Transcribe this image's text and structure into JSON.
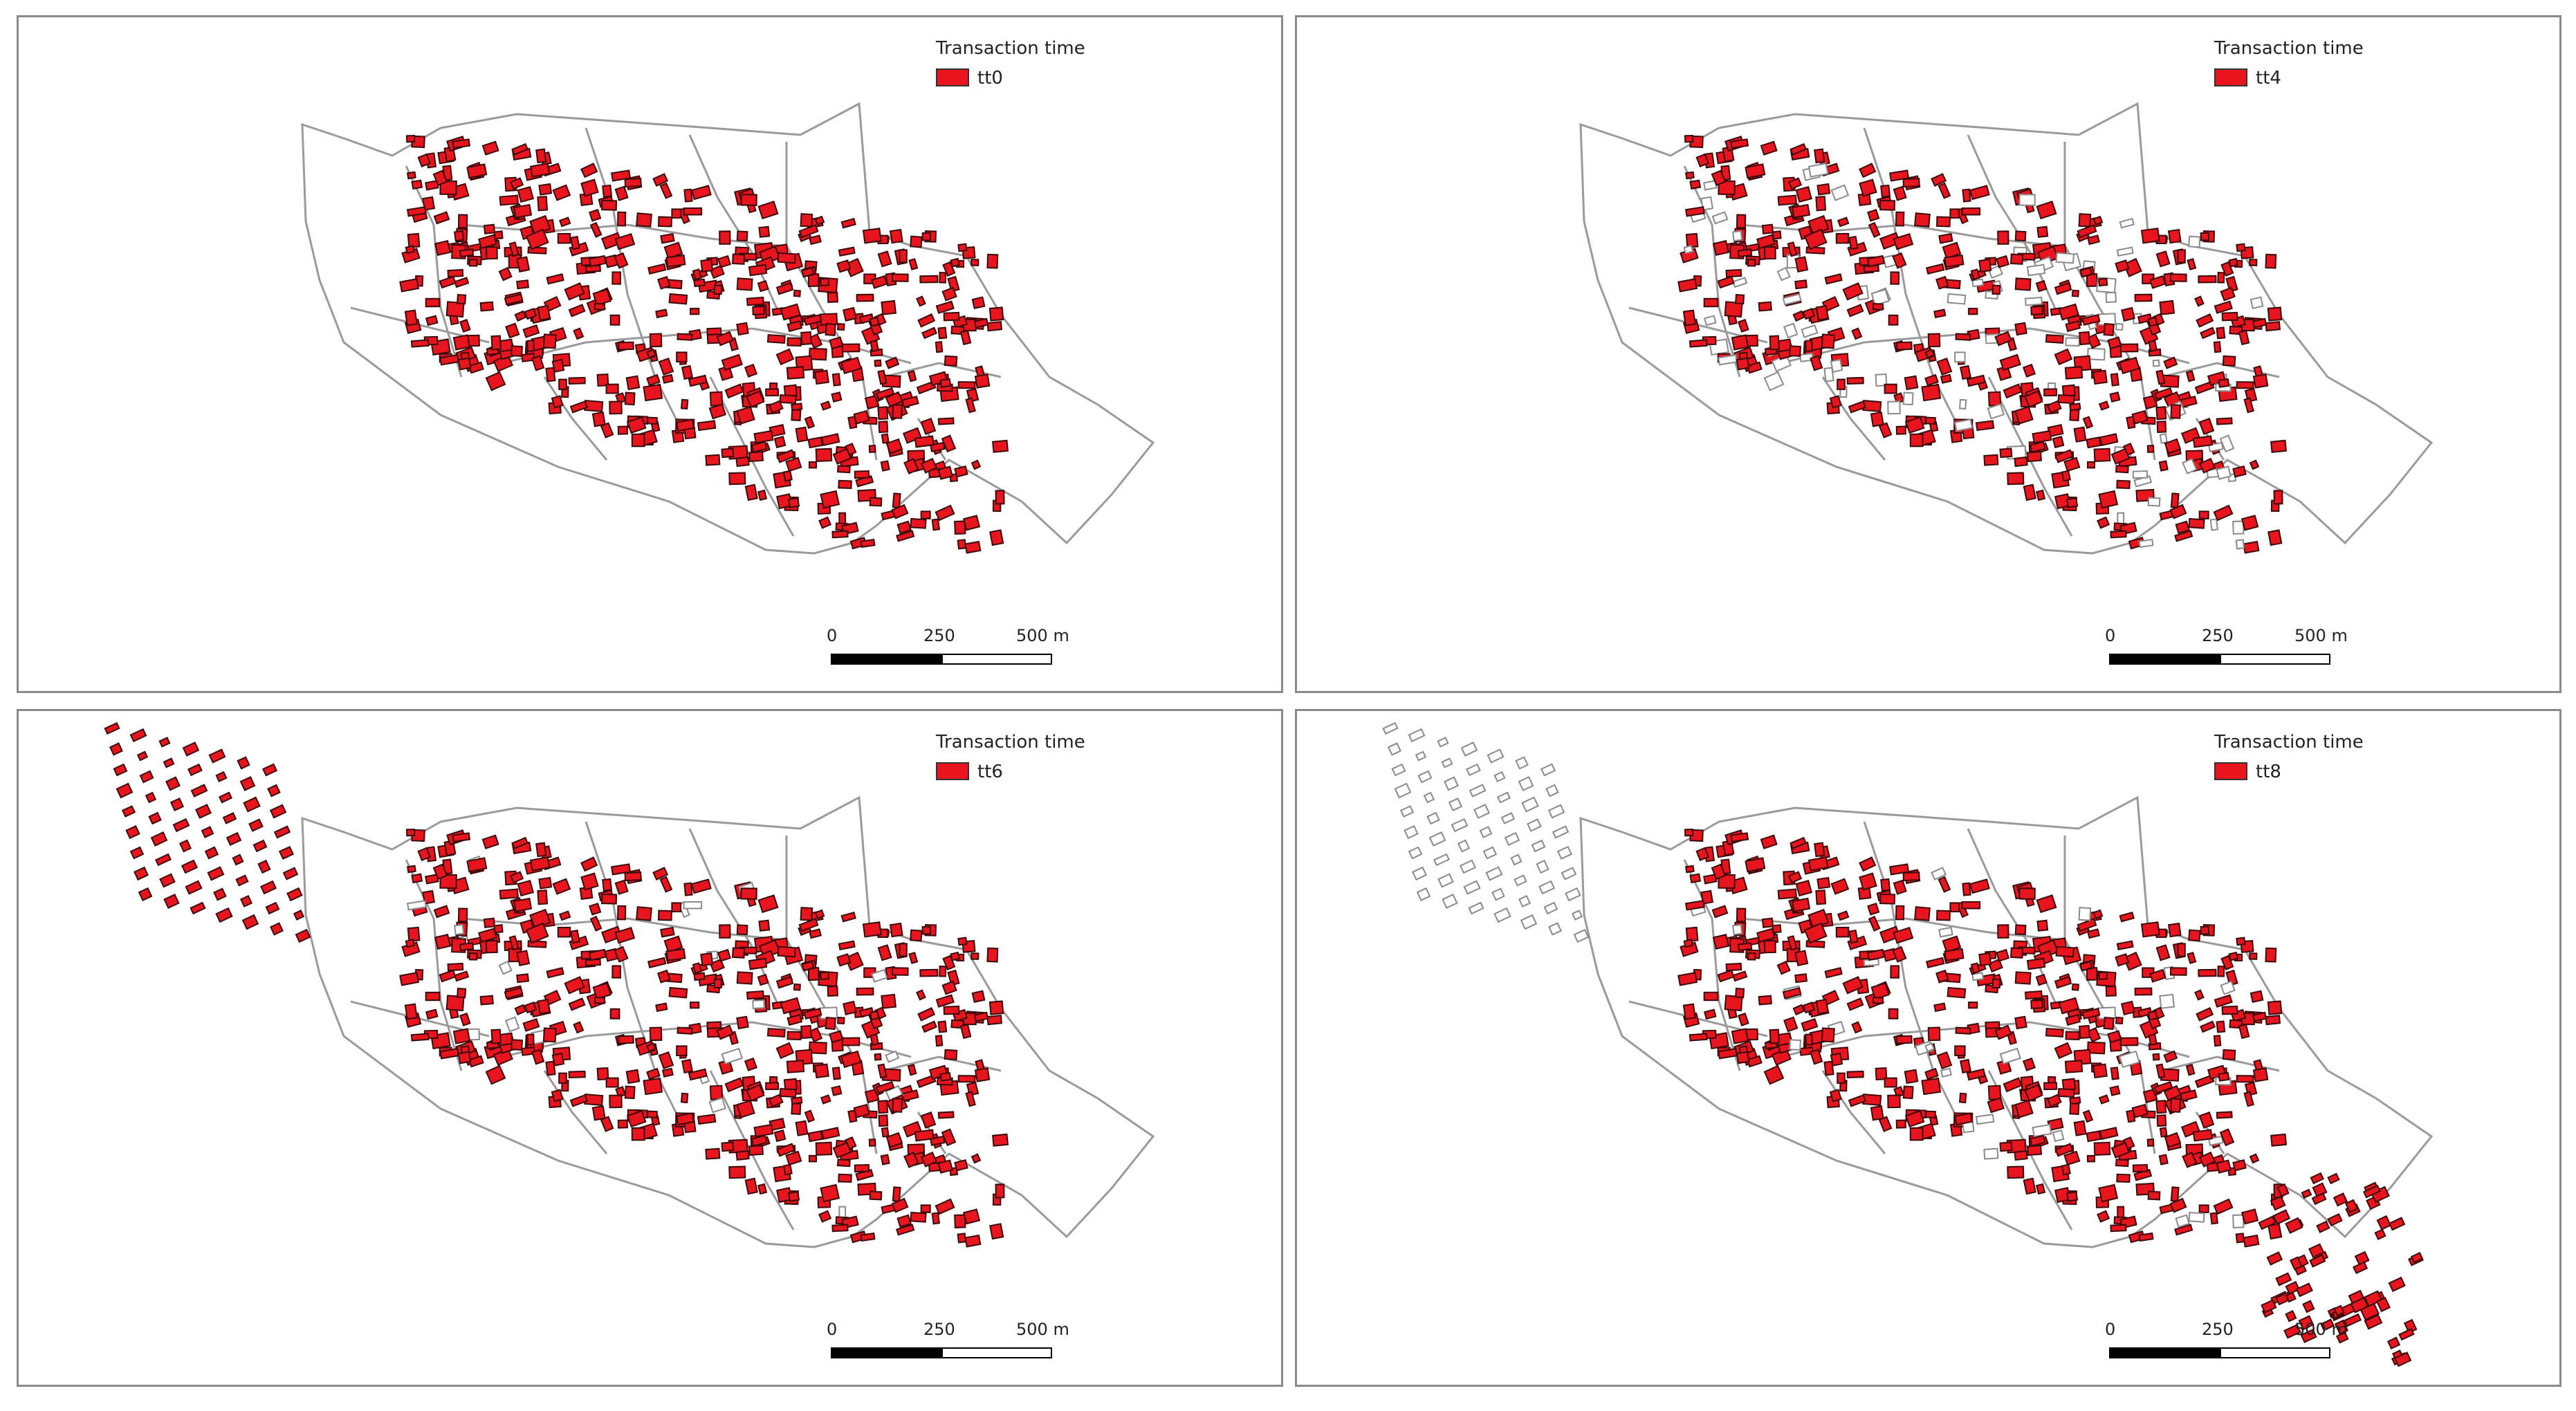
{
  "legend_title": "Transaction time",
  "legend_color": "#e8141e",
  "scale": {
    "label_0": "0",
    "label_1": "250",
    "label_2": "500 m"
  },
  "panels": [
    {
      "label": "tt0",
      "built_share": 1.0,
      "west_district": "none",
      "east_district": "none"
    },
    {
      "label": "tt4",
      "built_share": 0.85,
      "west_district": "none",
      "east_district": "none"
    },
    {
      "label": "tt6",
      "built_share": 0.95,
      "west_district": "filled",
      "east_district": "none"
    },
    {
      "label": "tt8",
      "built_share": 0.95,
      "west_district": "outline",
      "east_district": "filled"
    }
  ]
}
